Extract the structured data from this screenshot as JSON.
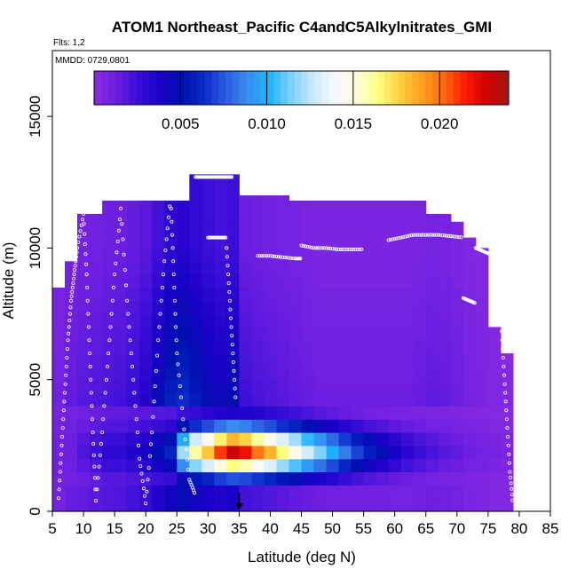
{
  "chart_data": {
    "type": "heatmap",
    "title": "ATOM1 Northeast_Pacific C4andC5Alkylnitrates_GMI",
    "flights_label": "Flts: 1,2",
    "date_label": "MMDD: 0729,0801",
    "xlabel": "Latitude (deg N)",
    "ylabel": "Altitude (m)",
    "xlim": [
      5,
      85
    ],
    "ylim": [
      0,
      17500
    ],
    "x_ticks": [
      "5",
      "10",
      "15",
      "20",
      "25",
      "30",
      "35",
      "40",
      "45",
      "50",
      "55",
      "60",
      "65",
      "70",
      "75",
      "80",
      "85"
    ],
    "y_ticks": [
      "0",
      "5000",
      "10000",
      "15000"
    ],
    "colorbar": {
      "min": 0,
      "max": 0.024,
      "tick_values": [
        0.005,
        0.01,
        0.015,
        0.02
      ],
      "tick_labels": [
        "0.005",
        "0.010",
        "0.015",
        "0.020"
      ],
      "colors": [
        "#8a2be2",
        "#6a1ee0",
        "#3a0fd8",
        "#1a00c8",
        "#0010b0",
        "#0a28c8",
        "#2a5ae0",
        "#3a8af0",
        "#1ab4ff",
        "#7ad0ff",
        "#c8e8ff",
        "#f4f8ff",
        "#fffae0",
        "#ffff80",
        "#ffd040",
        "#ffa020",
        "#ff6a10",
        "#ff1a00",
        "#d00000",
        "#a01818"
      ]
    },
    "arrow_latitude": 35,
    "columns": [
      {
        "lat": 6,
        "top": 8500,
        "low": 0.0008,
        "mid": 0.001,
        "peak": 0.001
      },
      {
        "lat": 8,
        "top": 9500,
        "low": 0.0009,
        "mid": 0.0015,
        "peak": 0.0012
      },
      {
        "lat": 10,
        "top": 11300,
        "low": 0.001,
        "mid": 0.0018,
        "peak": 0.002
      },
      {
        "lat": 12,
        "top": 11300,
        "low": 0.0012,
        "mid": 0.002,
        "peak": 0.0025
      },
      {
        "lat": 14,
        "top": 11800,
        "low": 0.0014,
        "mid": 0.0022,
        "peak": 0.003
      },
      {
        "lat": 16,
        "top": 11800,
        "low": 0.0014,
        "mid": 0.0024,
        "peak": 0.003
      },
      {
        "lat": 18,
        "top": 11800,
        "low": 0.0015,
        "mid": 0.0028,
        "peak": 0.0035
      },
      {
        "lat": 20,
        "top": 11800,
        "low": 0.0015,
        "mid": 0.0035,
        "peak": 0.004
      },
      {
        "lat": 22,
        "top": 11800,
        "low": 0.0016,
        "mid": 0.0048,
        "peak": 0.005
      },
      {
        "lat": 24,
        "top": 11800,
        "low": 0.0016,
        "mid": 0.006,
        "peak": 0.006
      },
      {
        "lat": 26,
        "top": 11800,
        "low": 0.0018,
        "mid": 0.0065,
        "peak": 0.012
      },
      {
        "lat": 28,
        "top": 12800,
        "low": 0.0018,
        "mid": 0.0058,
        "peak": 0.016
      },
      {
        "lat": 30,
        "top": 12800,
        "low": 0.002,
        "mid": 0.005,
        "peak": 0.018
      },
      {
        "lat": 32,
        "top": 12800,
        "low": 0.002,
        "mid": 0.0045,
        "peak": 0.021
      },
      {
        "lat": 34,
        "top": 12800,
        "low": 0.002,
        "mid": 0.005,
        "peak": 0.023
      },
      {
        "lat": 36,
        "top": 12000,
        "low": 0.002,
        "mid": 0.0025,
        "peak": 0.022
      },
      {
        "lat": 38,
        "top": 12000,
        "low": 0.002,
        "mid": 0.0022,
        "peak": 0.02
      },
      {
        "lat": 40,
        "top": 12000,
        "low": 0.0018,
        "mid": 0.002,
        "peak": 0.0185
      },
      {
        "lat": 42,
        "top": 12000,
        "low": 0.0016,
        "mid": 0.0018,
        "peak": 0.0165
      },
      {
        "lat": 44,
        "top": 11800,
        "low": 0.0014,
        "mid": 0.0016,
        "peak": 0.015
      },
      {
        "lat": 46,
        "top": 11800,
        "low": 0.0012,
        "mid": 0.0014,
        "peak": 0.013
      },
      {
        "lat": 48,
        "top": 11800,
        "low": 0.001,
        "mid": 0.0012,
        "peak": 0.0115
      },
      {
        "lat": 50,
        "top": 11800,
        "low": 0.0009,
        "mid": 0.0012,
        "peak": 0.01
      },
      {
        "lat": 52,
        "top": 11800,
        "low": 0.0008,
        "mid": 0.0012,
        "peak": 0.0085
      },
      {
        "lat": 54,
        "top": 11800,
        "low": 0.0007,
        "mid": 0.0012,
        "peak": 0.007
      },
      {
        "lat": 56,
        "top": 11800,
        "low": 0.0006,
        "mid": 0.0012,
        "peak": 0.0058
      },
      {
        "lat": 58,
        "top": 11800,
        "low": 0.0006,
        "mid": 0.0012,
        "peak": 0.0048
      },
      {
        "lat": 60,
        "top": 11800,
        "low": 0.0005,
        "mid": 0.0012,
        "peak": 0.004
      },
      {
        "lat": 62,
        "top": 11800,
        "low": 0.0005,
        "mid": 0.0012,
        "peak": 0.0032
      },
      {
        "lat": 64,
        "top": 11800,
        "low": 0.0005,
        "mid": 0.0014,
        "peak": 0.0026
      },
      {
        "lat": 66,
        "top": 11300,
        "low": 0.0004,
        "mid": 0.0016,
        "peak": 0.0022
      },
      {
        "lat": 68,
        "top": 11300,
        "low": 0.0004,
        "mid": 0.0015,
        "peak": 0.0018
      },
      {
        "lat": 70,
        "top": 11000,
        "low": 0.0004,
        "mid": 0.0012,
        "peak": 0.0015
      },
      {
        "lat": 72,
        "top": 10400,
        "low": 0.0003,
        "mid": 0.0008,
        "peak": 0.0012
      },
      {
        "lat": 74,
        "top": 10000,
        "low": 0.0003,
        "mid": 0.0006,
        "peak": 0.001
      },
      {
        "lat": 76,
        "top": 7000,
        "low": 0.0002,
        "mid": 0.0004,
        "peak": 0.0008
      },
      {
        "lat": 78,
        "top": 6000,
        "low": 0.0002,
        "mid": 0.0003,
        "peak": 0.0006
      }
    ],
    "flight_track_segments": [
      {
        "lats": [
          6,
          6.5,
          7,
          7.5,
          8,
          8.5,
          9,
          10
        ],
        "alts": [
          500,
          2500,
          4500,
          6500,
          8000,
          9000,
          10000,
          11300
        ]
      },
      {
        "lats": [
          10,
          10.5,
          11,
          11.5,
          12
        ],
        "alts": [
          11300,
          9000,
          6000,
          3000,
          400
        ]
      },
      {
        "lats": [
          12,
          13,
          14,
          15,
          16
        ],
        "alts": [
          400,
          3000,
          6000,
          9000,
          11500
        ]
      },
      {
        "lats": [
          16,
          17,
          18,
          19,
          20
        ],
        "alts": [
          11500,
          8000,
          5000,
          2000,
          300
        ]
      },
      {
        "lats": [
          20,
          21,
          22,
          23,
          24
        ],
        "alts": [
          300,
          3000,
          6500,
          9500,
          12000
        ]
      },
      {
        "lats": [
          24,
          24.5,
          25,
          26,
          27,
          28
        ],
        "alts": [
          12000,
          9000,
          6000,
          3500,
          1200,
          600
        ]
      },
      {
        "lats": [
          28,
          29,
          30,
          31,
          32,
          33,
          34
        ],
        "alts": [
          12700,
          12700,
          12700,
          12700,
          12700,
          12700,
          12700
        ]
      },
      {
        "lats": [
          30,
          31,
          32,
          33
        ],
        "alts": [
          10400,
          10400,
          10400,
          10400
        ]
      },
      {
        "lats": [
          33,
          33.5,
          34,
          34.5
        ],
        "alts": [
          10000,
          8000,
          6000,
          4000
        ]
      },
      {
        "lats": [
          38,
          40,
          42,
          44,
          45
        ],
        "alts": [
          9700,
          9700,
          9650,
          9600,
          9600
        ]
      },
      {
        "lats": [
          45,
          47,
          49,
          51,
          53,
          55
        ],
        "alts": [
          10100,
          10000,
          10000,
          9950,
          9950,
          9950
        ]
      },
      {
        "lats": [
          59,
          61,
          63,
          65,
          67,
          69,
          71
        ],
        "alts": [
          10300,
          10400,
          10500,
          10500,
          10500,
          10450,
          10400
        ]
      },
      {
        "lats": [
          73,
          74,
          75,
          76,
          77
        ],
        "alts": [
          10000,
          9900,
          9800,
          9700,
          9600
        ]
      },
      {
        "lats": [
          71,
          72,
          73
        ],
        "alts": [
          8100,
          8000,
          7900
        ]
      },
      {
        "lats": [
          77,
          77.5,
          78,
          78.5,
          79
        ],
        "alts": [
          7500,
          5500,
          3500,
          1500,
          200
        ]
      }
    ]
  }
}
